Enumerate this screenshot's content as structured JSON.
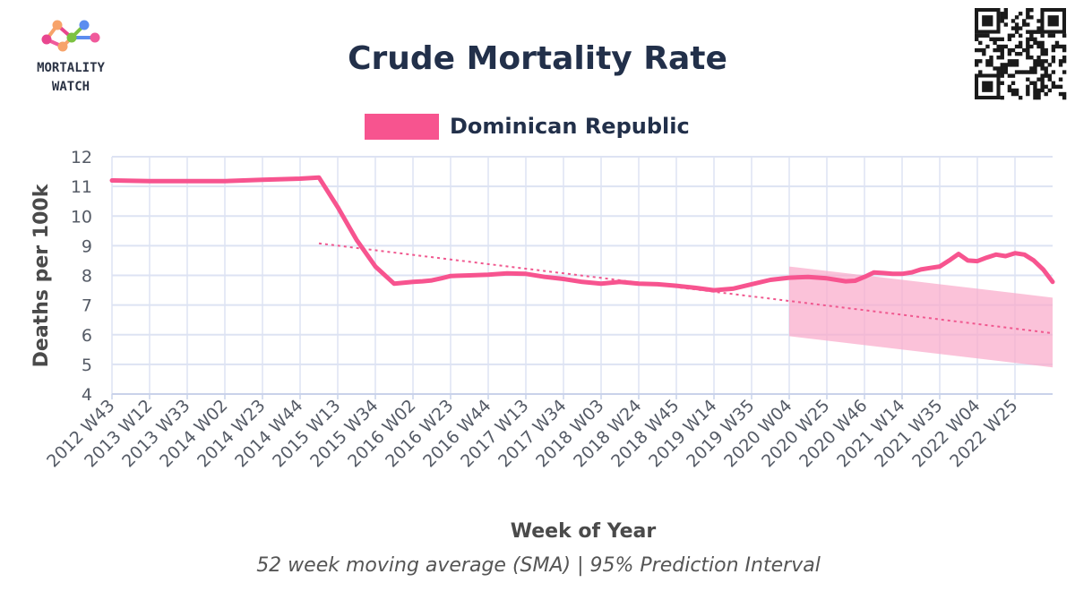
{
  "brand": {
    "line1": "MORTALITY",
    "line2": "WATCH",
    "dot_colors": [
      "#f7a36a",
      "#e9468f",
      "#7cc242",
      "#5b8def",
      "#f05a9b"
    ]
  },
  "colors": {
    "series": "#f7548f",
    "band": "#f9a8c9",
    "trend": "#f0588f",
    "grid": "#dde3f3",
    "axis": "#c9d2ea",
    "title": "#22304a"
  },
  "chart_data": {
    "type": "line",
    "title": "Crude Mortality Rate",
    "xlabel": "Week of Year",
    "ylabel": "Deaths per 100k",
    "caption": "52 week moving average (SMA) | 95% Prediction Interval",
    "legend": {
      "position": "top-center",
      "entries": [
        "Dominican Republic"
      ]
    },
    "grid": true,
    "ylim": [
      3.8,
      12
    ],
    "yticks": [
      4,
      5,
      6,
      7,
      8,
      9,
      10,
      11,
      12
    ],
    "x_tick_labels": [
      "2012 W43",
      "2013 W12",
      "2013 W33",
      "2014 W02",
      "2014 W23",
      "2014 W44",
      "2015 W13",
      "2015 W34",
      "2016 W02",
      "2016 W23",
      "2016 W44",
      "2017 W13",
      "2017 W34",
      "2018 W03",
      "2018 W24",
      "2018 W45",
      "2019 W14",
      "2019 W35",
      "2020 W04",
      "2020 W25",
      "2020 W46",
      "2021 W14",
      "2021 W35",
      "2022 W04",
      "2022 W25"
    ],
    "label_every": 2,
    "x_range": [
      0,
      50
    ],
    "series": [
      {
        "name": "Dominican Republic",
        "x": [
          0,
          2,
          4,
          6,
          8,
          10,
          11,
          12,
          13,
          14,
          15,
          16,
          16.5,
          17,
          17.5,
          18,
          19,
          20,
          21,
          22,
          23,
          24,
          25,
          26,
          27,
          28,
          29,
          30,
          31,
          32,
          33,
          34,
          35,
          36,
          37,
          38,
          39,
          39.5,
          40,
          40.5,
          41,
          41.5,
          42,
          42.5,
          43,
          43.5,
          44,
          44.5,
          45,
          45.5,
          46,
          46.5,
          47,
          47.5,
          48,
          48.5,
          49,
          49.5,
          50
        ],
        "values": [
          11.2,
          11.18,
          11.18,
          11.18,
          11.22,
          11.26,
          11.3,
          10.3,
          9.2,
          8.3,
          7.72,
          7.78,
          7.8,
          7.83,
          7.9,
          7.98,
          8.0,
          8.02,
          8.07,
          8.05,
          7.95,
          7.88,
          7.78,
          7.72,
          7.78,
          7.72,
          7.7,
          7.65,
          7.58,
          7.5,
          7.55,
          7.7,
          7.85,
          7.92,
          7.95,
          7.9,
          7.8,
          7.82,
          7.95,
          8.1,
          8.08,
          8.05,
          8.05,
          8.1,
          8.2,
          8.25,
          8.3,
          8.5,
          8.72,
          8.5,
          8.48,
          8.6,
          8.7,
          8.65,
          8.75,
          8.7,
          8.5,
          8.2,
          7.78
        ]
      }
    ],
    "trend": {
      "x": [
        11,
        50
      ],
      "values": [
        9.08,
        6.05
      ]
    },
    "prediction_interval": {
      "x": [
        36,
        50
      ],
      "upper": [
        8.3,
        7.25
      ],
      "lower": [
        5.95,
        4.9
      ]
    }
  }
}
